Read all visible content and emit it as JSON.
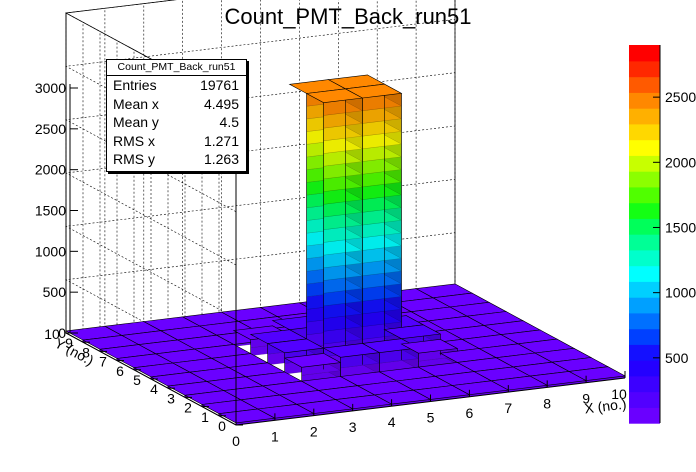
{
  "title": "Count_PMT_Back_run51",
  "stats": {
    "name": "Count_PMT_Back_run51",
    "rows": [
      {
        "label": "Entries",
        "value": "19761"
      },
      {
        "label": "Mean x",
        "value": "4.495"
      },
      {
        "label": "Mean y",
        "value": "4.5"
      },
      {
        "label": "RMS x",
        "value": "1.271"
      },
      {
        "label": "RMS y",
        "value": "1.263"
      }
    ]
  },
  "chart_data": {
    "type": "lego",
    "title": "Count_PMT_Back_run51",
    "xlabel": "X (no.)",
    "ylabel": "Y (no.)",
    "xlim": [
      0,
      10
    ],
    "ylim": [
      0,
      10
    ],
    "zlim": [
      0,
      3000
    ],
    "x_ticks": [
      "0",
      "1",
      "2",
      "3",
      "4",
      "5",
      "6",
      "7",
      "8",
      "9",
      "10"
    ],
    "y_ticks": [
      "0",
      "1",
      "2",
      "3",
      "4",
      "5",
      "6",
      "7",
      "8",
      "9",
      "10"
    ],
    "z_ticks": [
      "0",
      "500",
      "1000",
      "1500",
      "2000",
      "2500",
      "3000"
    ],
    "palette_ticks": [
      "500",
      "1000",
      "1500",
      "2000",
      "2500"
    ],
    "palette_range": [
      0,
      2900
    ],
    "bins": [
      {
        "x": 4,
        "y": 4,
        "z": 2500
      },
      {
        "x": 4,
        "y": 5,
        "z": 2500
      },
      {
        "x": 5,
        "y": 4,
        "z": 2500
      },
      {
        "x": 5,
        "y": 5,
        "z": 2500
      },
      {
        "x": 3,
        "y": 3,
        "z": 150
      },
      {
        "x": 3,
        "y": 4,
        "z": 200
      },
      {
        "x": 3,
        "y": 5,
        "z": 200
      },
      {
        "x": 3,
        "y": 6,
        "z": 150
      },
      {
        "x": 4,
        "y": 3,
        "z": 200
      },
      {
        "x": 5,
        "y": 3,
        "z": 200
      },
      {
        "x": 6,
        "y": 3,
        "z": 150
      },
      {
        "x": 4,
        "y": 6,
        "z": 200
      },
      {
        "x": 5,
        "y": 6,
        "z": 200
      },
      {
        "x": 6,
        "y": 4,
        "z": 200
      },
      {
        "x": 6,
        "y": 5,
        "z": 200
      },
      {
        "x": 6,
        "y": 6,
        "z": 150
      }
    ],
    "background_value": 20
  }
}
